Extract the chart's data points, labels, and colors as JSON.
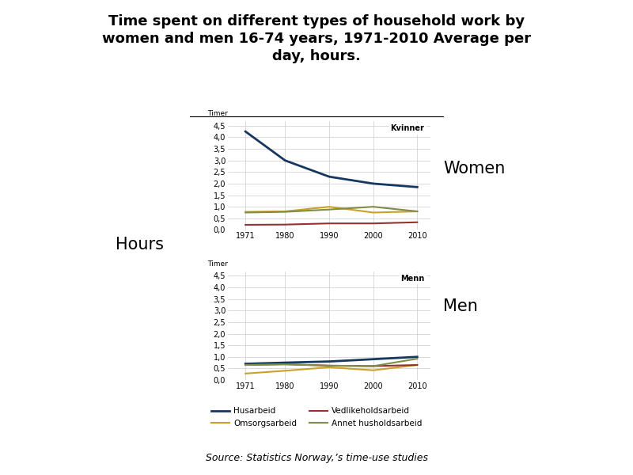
{
  "title": "Time spent on different types of household work by\nwomen and men 16-74 years, 1971-2010 Average per\nday, hours.",
  "source": "Source: Statistics Norway,’s time-use studies",
  "years": [
    1971,
    1980,
    1990,
    2000,
    2010
  ],
  "women": {
    "label": "Kvinner",
    "husarbeid": [
      4.25,
      3.0,
      2.3,
      2.0,
      1.85
    ],
    "omsorgsarbeid": [
      0.78,
      0.8,
      1.0,
      0.75,
      0.8
    ],
    "vedlikeholdsarbeid": [
      0.22,
      0.23,
      0.28,
      0.28,
      0.33
    ],
    "annet": [
      0.75,
      0.78,
      0.88,
      1.0,
      0.8
    ]
  },
  "men": {
    "label": "Menn",
    "husarbeid": [
      0.7,
      0.75,
      0.8,
      0.9,
      1.0
    ],
    "omsorgsarbeid": [
      0.28,
      0.4,
      0.55,
      0.42,
      0.65
    ],
    "vedlikeholdsarbeid": [
      0.65,
      0.68,
      0.62,
      0.6,
      0.65
    ],
    "annet": [
      0.65,
      0.68,
      0.62,
      0.6,
      0.92
    ]
  },
  "colors": {
    "husarbeid": "#17375E",
    "omsorgsarbeid": "#C9A227",
    "vedlikeholdsarbeid": "#943232",
    "annet": "#7F8C4A"
  },
  "legend_labels": {
    "husarbeid": "Husarbeid",
    "omsorgsarbeid": "Omsorgsarbeid",
    "vedlikeholdsarbeid": "Vedlikeholdsarbeid",
    "annet": "Annet husholdsarbeid"
  },
  "yticks": [
    0.0,
    0.5,
    1.0,
    1.5,
    2.0,
    2.5,
    3.0,
    3.5,
    4.0,
    4.5
  ],
  "ytick_labels": [
    "0,0",
    "0,5",
    "1,0",
    "1,5",
    "2,0",
    "2,5",
    "3,0",
    "3,5",
    "4,0",
    "4,5"
  ],
  "ylim": [
    0,
    4.7
  ],
  "timer_label": "Timer",
  "hours_label": "Hours",
  "women_label": "Women",
  "men_label": "Men",
  "background_color": "#FFFFFF"
}
